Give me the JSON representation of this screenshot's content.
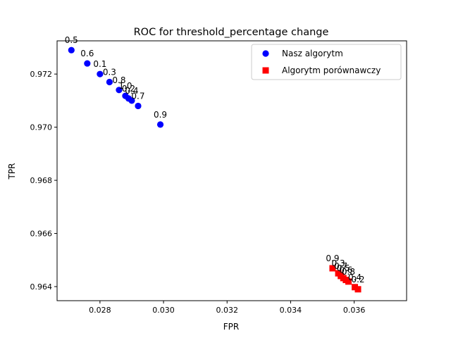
{
  "chart_data": {
    "type": "scatter",
    "title": "ROC for threshold_percentage change",
    "xlabel": "FPR",
    "ylabel": "TPR",
    "xlim": [
      0.02665,
      0.03765
    ],
    "ylim": [
      0.96347,
      0.97325
    ],
    "xticks": [
      {
        "value": 0.028,
        "label": "0.028"
      },
      {
        "value": 0.03,
        "label": "0.030"
      },
      {
        "value": 0.032,
        "label": "0.032"
      },
      {
        "value": 0.034,
        "label": "0.034"
      },
      {
        "value": 0.036,
        "label": "0.036"
      }
    ],
    "yticks": [
      {
        "value": 0.964,
        "label": "0.964"
      },
      {
        "value": 0.966,
        "label": "0.966"
      },
      {
        "value": 0.968,
        "label": "0.968"
      },
      {
        "value": 0.97,
        "label": "0.970"
      },
      {
        "value": 0.972,
        "label": "0.972"
      }
    ],
    "grid": false,
    "legend_position": "top-right",
    "series": [
      {
        "name": "Nasz algorytm",
        "marker": "circle",
        "color": "#0000ff",
        "points": [
          {
            "x": 0.0271,
            "y": 0.9729,
            "label": "0.5"
          },
          {
            "x": 0.0276,
            "y": 0.9724,
            "label": "0.6"
          },
          {
            "x": 0.028,
            "y": 0.972,
            "label": "0.1"
          },
          {
            "x": 0.0283,
            "y": 0.9717,
            "label": "0.3"
          },
          {
            "x": 0.0286,
            "y": 0.9714,
            "label": "0.8"
          },
          {
            "x": 0.0288,
            "y": 0.97118,
            "label": "1.0"
          },
          {
            "x": 0.0289,
            "y": 0.97108,
            "label": "0.2"
          },
          {
            "x": 0.029,
            "y": 0.971,
            "label": "0.4"
          },
          {
            "x": 0.0292,
            "y": 0.9708,
            "label": "0.7"
          },
          {
            "x": 0.0299,
            "y": 0.9701,
            "label": "0.9"
          }
        ]
      },
      {
        "name": "Algorytm porównawczy",
        "marker": "square",
        "color": "#ff0000",
        "points": [
          {
            "x": 0.03532,
            "y": 0.96469,
            "label": "0.9"
          },
          {
            "x": 0.0355,
            "y": 0.9645,
            "label": "0.3"
          },
          {
            "x": 0.03558,
            "y": 0.9644,
            "label": "0.7"
          },
          {
            "x": 0.03566,
            "y": 0.96432,
            "label": "0.5"
          },
          {
            "x": 0.03574,
            "y": 0.96425,
            "label": "0.6"
          },
          {
            "x": 0.03582,
            "y": 0.96419,
            "label": "0.8"
          },
          {
            "x": 0.03602,
            "y": 0.96398,
            "label": "0.4"
          },
          {
            "x": 0.03612,
            "y": 0.9639,
            "label": "0.2"
          }
        ]
      }
    ]
  }
}
